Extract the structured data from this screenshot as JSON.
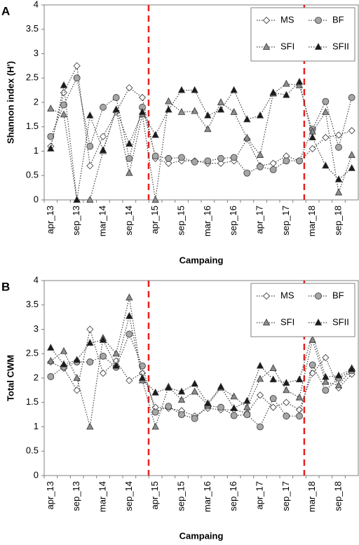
{
  "chart_data": [
    {
      "type": "line",
      "panel_label": "A",
      "ylabel": "Shannon index (H')",
      "xlabel": "Campaing",
      "categories": [
        "apr_13",
        null,
        "sep_13",
        null,
        "mar_14",
        null,
        "sep_14",
        null,
        "apr_15",
        null,
        "sep_15",
        null,
        "mar_16",
        null,
        "sep_16",
        null,
        "apr_17",
        null,
        "sep_17",
        null,
        "mar_18",
        null,
        "sep_18",
        null
      ],
      "ylim": [
        0,
        4
      ],
      "yticks": [
        0,
        0.5,
        1,
        1.5,
        2,
        2.5,
        3,
        3.5,
        4
      ],
      "legend": "upper right",
      "series": [
        {
          "name": "MS",
          "color": "#ffffff",
          "marker": "diamond",
          "values": [
            1.1,
            2.2,
            2.75,
            0.7,
            1.3,
            1.8,
            2.3,
            2.1,
            0.85,
            0.75,
            0.8,
            0.8,
            0.75,
            0.75,
            0.8,
            1.25,
            0.7,
            0.75,
            0.9,
            0.8,
            1.05,
            1.28,
            1.33,
            1.42
          ]
        },
        {
          "name": "BF",
          "color": "#a6a6a6",
          "marker": "circle",
          "values": [
            1.3,
            1.95,
            2.5,
            1.1,
            1.9,
            2.1,
            0.85,
            1.9,
            0.9,
            0.85,
            0.87,
            0.78,
            0.8,
            0.85,
            0.87,
            0.55,
            0.68,
            0.62,
            0.8,
            0.8,
            1.45,
            2.02,
            1.08,
            2.1
          ]
        },
        {
          "name": "SFI",
          "color": "#8c8c8c",
          "marker": "triangle",
          "values": [
            1.87,
            1.75,
            0,
            0,
            1.0,
            1.85,
            0.55,
            1.75,
            0,
            2.02,
            1.8,
            1.82,
            1.45,
            2.0,
            1.8,
            1.27,
            0.92,
            2.18,
            2.38,
            2.35,
            1.4,
            1.8,
            0.15,
            0.92
          ]
        },
        {
          "name": "SFII",
          "color": "#1a1a1a",
          "marker": "triangle",
          "values": [
            1.05,
            2.35,
            0,
            1.73,
            1.02,
            1.85,
            1.15,
            1.8,
            1.33,
            1.85,
            2.25,
            2.25,
            1.73,
            1.85,
            2.25,
            1.65,
            1.73,
            2.2,
            2.15,
            2.42,
            1.28,
            0.7,
            0.42,
            0.65
          ]
        }
      ]
    },
    {
      "type": "line",
      "panel_label": "B",
      "ylabel": "Total CWM",
      "xlabel": "Campaing",
      "categories": [
        "apr_13",
        null,
        "sep_13",
        null,
        "mar_14",
        null,
        "sep_14",
        null,
        "apr_15",
        null,
        "sep_15",
        null,
        "mar_16",
        null,
        "sep_16",
        null,
        "apr_17",
        null,
        "sep_17",
        null,
        "mar_18",
        null,
        "sep_18",
        null
      ],
      "ylim": [
        0,
        4
      ],
      "yticks": [
        0,
        0.5,
        1,
        1.5,
        2,
        2.5,
        3,
        3.5,
        4
      ],
      "legend": "upper right",
      "series": [
        {
          "name": "MS",
          "color": "#ffffff",
          "marker": "diamond",
          "values": [
            2.33,
            2.2,
            1.75,
            3.0,
            2.1,
            2.35,
            1.95,
            2.1,
            1.4,
            1.38,
            1.33,
            1.22,
            1.38,
            1.35,
            1.35,
            1.28,
            1.65,
            1.4,
            1.5,
            1.35,
            2.1,
            2.42,
            1.8,
            2.08
          ]
        },
        {
          "name": "BF",
          "color": "#a6a6a6",
          "marker": "circle",
          "values": [
            2.03,
            2.23,
            2.33,
            2.33,
            2.45,
            2.22,
            2.9,
            2.25,
            1.3,
            1.42,
            1.25,
            1.17,
            1.43,
            1.4,
            1.23,
            1.25,
            1.0,
            1.58,
            1.22,
            1.22,
            2.27,
            1.75,
            2.0,
            2.15
          ]
        },
        {
          "name": "SFI",
          "color": "#8c8c8c",
          "marker": "triangle",
          "values": [
            2.35,
            2.55,
            2.0,
            1.0,
            2.82,
            2.5,
            3.65,
            1.95,
            1.0,
            1.82,
            1.55,
            1.72,
            1.45,
            1.8,
            1.62,
            1.4,
            1.98,
            2.2,
            1.75,
            1.6,
            2.78,
            1.92,
            1.85,
            2.2
          ]
        },
        {
          "name": "SFII",
          "color": "#1a1a1a",
          "marker": "triangle",
          "values": [
            2.62,
            2.28,
            2.37,
            2.72,
            2.78,
            2.25,
            3.27,
            2.0,
            1.7,
            1.8,
            1.72,
            1.88,
            1.48,
            1.82,
            1.38,
            1.53,
            2.25,
            1.97,
            1.9,
            1.97,
            2.9,
            2.02,
            2.05,
            2.18
          ]
        }
      ]
    }
  ]
}
